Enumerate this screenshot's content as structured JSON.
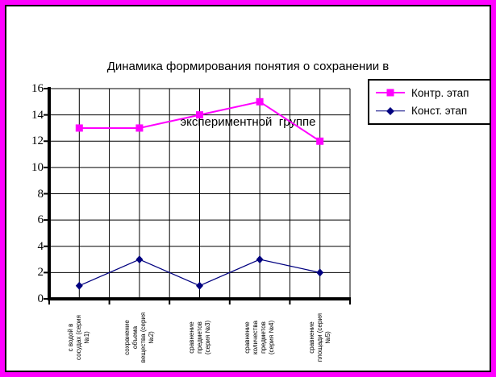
{
  "frame": {
    "border_color": "#ff00ff",
    "inner_border_color": "#000000",
    "background": "#ffffff"
  },
  "title": {
    "lines": [
      "Динамика формирования понятия о сохранении в",
      "экспериментной  группе"
    ]
  },
  "chart_data": {
    "type": "line",
    "title": "Динамика формирования понятия о сохранении в экспериментной группе",
    "categories": [
      "с водой в сосудах (серия №1)",
      "сохранение объема вещества (серия №2)",
      "сравнение предметов (серия №3)",
      "сравнение количества предметов (серия №4)",
      "сравнение площади (серия №5)"
    ],
    "categories_display_lines": [
      [
        "с водой в",
        "сосудах (серия",
        "№1)"
      ],
      [
        "сохранение",
        "объема",
        "вещества (серия",
        "№2)"
      ],
      [
        "сравнение",
        "предметов",
        "(серия №3)"
      ],
      [
        "сравнение",
        "количества",
        "предметов",
        "(серия №4)"
      ],
      [
        "сравнение",
        "площади (серия",
        "№5)"
      ]
    ],
    "series": [
      {
        "name": "Контр. этап",
        "color": "#ff00ff",
        "marker": "square",
        "values": [
          13,
          13,
          14,
          15,
          12
        ]
      },
      {
        "name": "Конст. этап",
        "color": "#000080",
        "marker": "diamond",
        "values": [
          1,
          3,
          1,
          3,
          2
        ]
      }
    ],
    "ylim": [
      0,
      16
    ],
    "yticks": [
      0,
      2,
      4,
      6,
      8,
      10,
      12,
      14,
      16
    ],
    "x_gridline_intervals": 10,
    "grid": true,
    "gridline_color": "#000000",
    "legend_position": "top-right"
  }
}
